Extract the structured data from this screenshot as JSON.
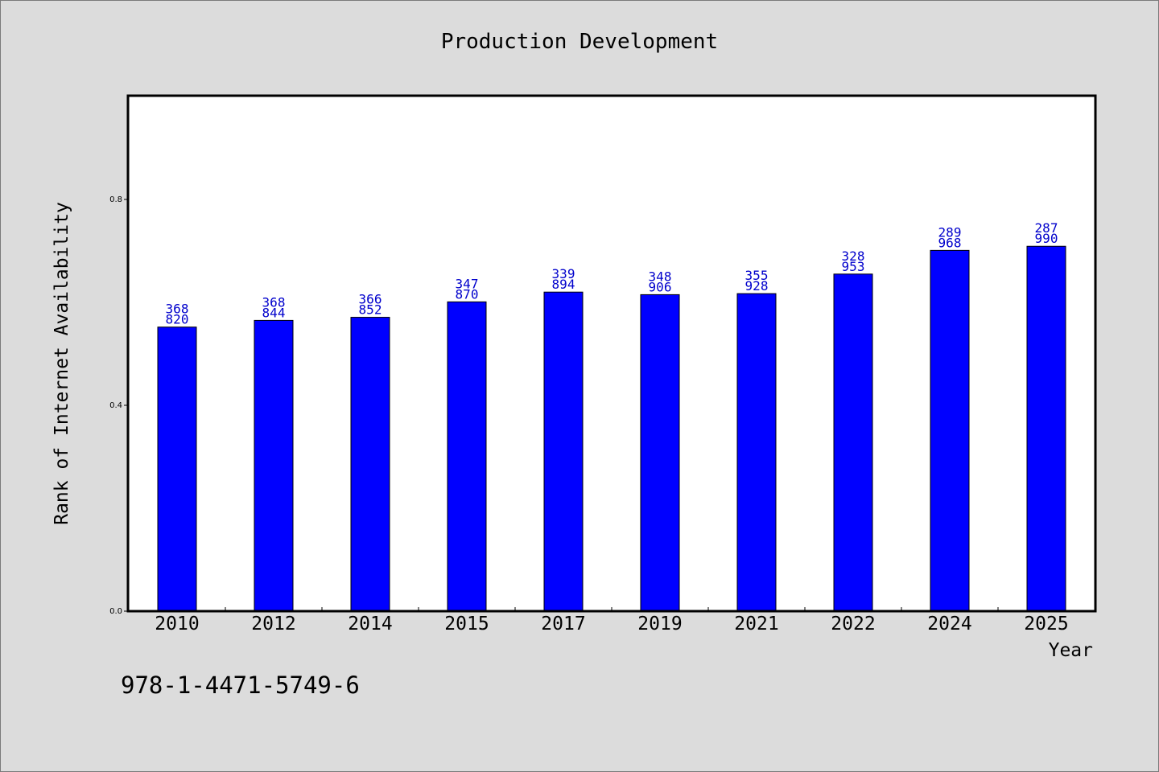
{
  "chart_data": {
    "type": "bar",
    "title": "Production Development",
    "xlabel": "Year",
    "ylabel": "Rank of Internet Availability",
    "categories": [
      "2010",
      "2012",
      "2014",
      "2015",
      "2017",
      "2019",
      "2021",
      "2022",
      "2024",
      "2025"
    ],
    "values": [
      0.552,
      0.565,
      0.571,
      0.601,
      0.62,
      0.615,
      0.617,
      0.655,
      0.701,
      0.709
    ],
    "data_labels": [
      [
        "368",
        "820"
      ],
      [
        "368",
        "844"
      ],
      [
        "366",
        "852"
      ],
      [
        "347",
        "870"
      ],
      [
        "339",
        "894"
      ],
      [
        "348",
        "906"
      ],
      [
        "355",
        "928"
      ],
      [
        "328",
        "953"
      ],
      [
        "289",
        "968"
      ],
      [
        "287",
        "990"
      ]
    ],
    "ylim": [
      0,
      1.0
    ],
    "yticks": [
      0.0,
      0.4,
      0.8
    ],
    "ytick_labels": [
      "0.0",
      "0.4",
      "0.8"
    ],
    "grid": false,
    "bar_color": "#0000ff",
    "label_color": "#0000cc"
  },
  "footnote": "978-1-4471-5749-6"
}
